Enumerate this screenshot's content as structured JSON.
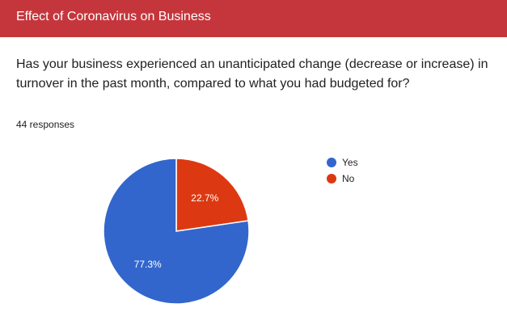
{
  "header": {
    "title": "Effect of Coronavirus on Business",
    "color": "#c5363c"
  },
  "question": {
    "text": "Has your business experienced an unanticipated change (decrease or increase) in turnover in the past month, compared to what you had budgeted for?",
    "responses": "44 responses"
  },
  "chart_data": {
    "type": "pie",
    "categories": [
      "Yes",
      "No"
    ],
    "values": [
      77.3,
      22.7
    ],
    "labels": [
      "77.3%",
      "22.7%"
    ],
    "colors": [
      "#3366cc",
      "#dc3912"
    ],
    "legend_position": "right"
  }
}
